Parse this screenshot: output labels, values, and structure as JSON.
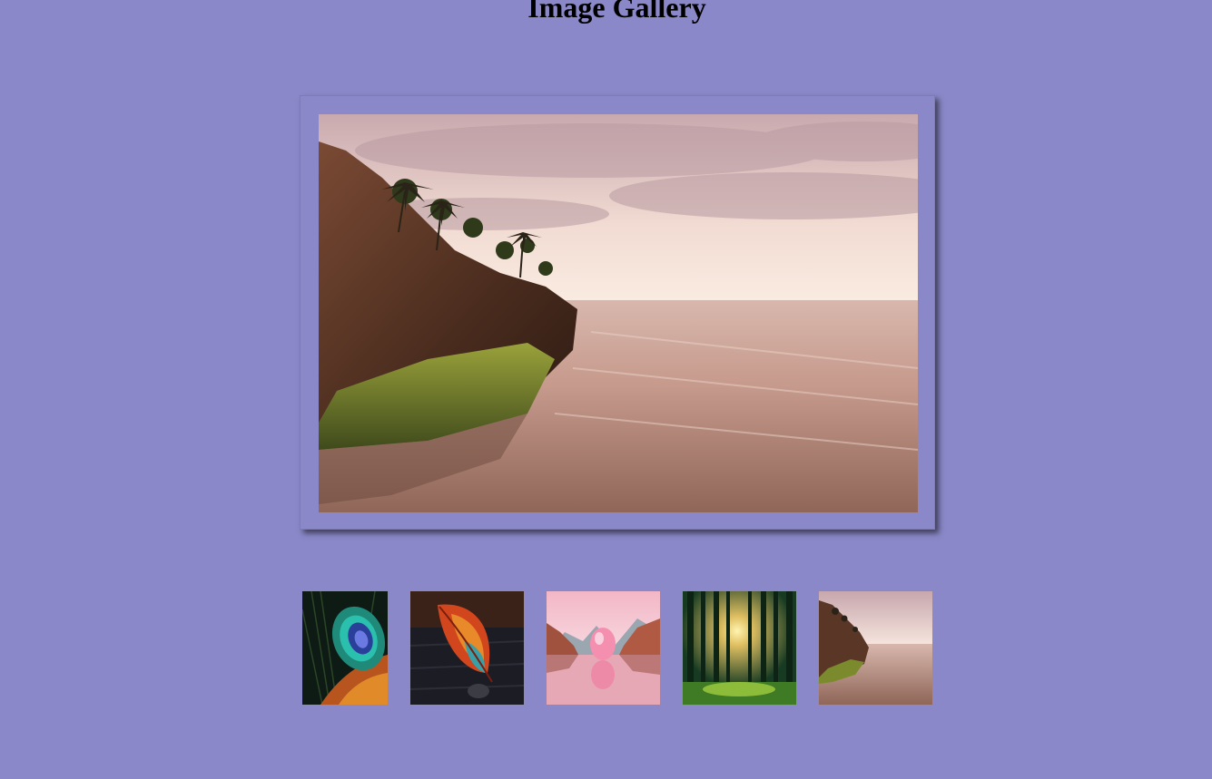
{
  "page": {
    "title": "Image Gallery",
    "background": "#8a88c8"
  },
  "main_image": {
    "subject": "beach-sunset-rocks-icon",
    "selected_thumbnail": 5
  },
  "thumbnails": [
    {
      "subject": "peacock-feather-icon"
    },
    {
      "subject": "autumn-leaf-icon"
    },
    {
      "subject": "pink-sphere-lake-icon"
    },
    {
      "subject": "sunlit-forest-icon"
    },
    {
      "subject": "beach-sunset-rocks-icon"
    }
  ]
}
